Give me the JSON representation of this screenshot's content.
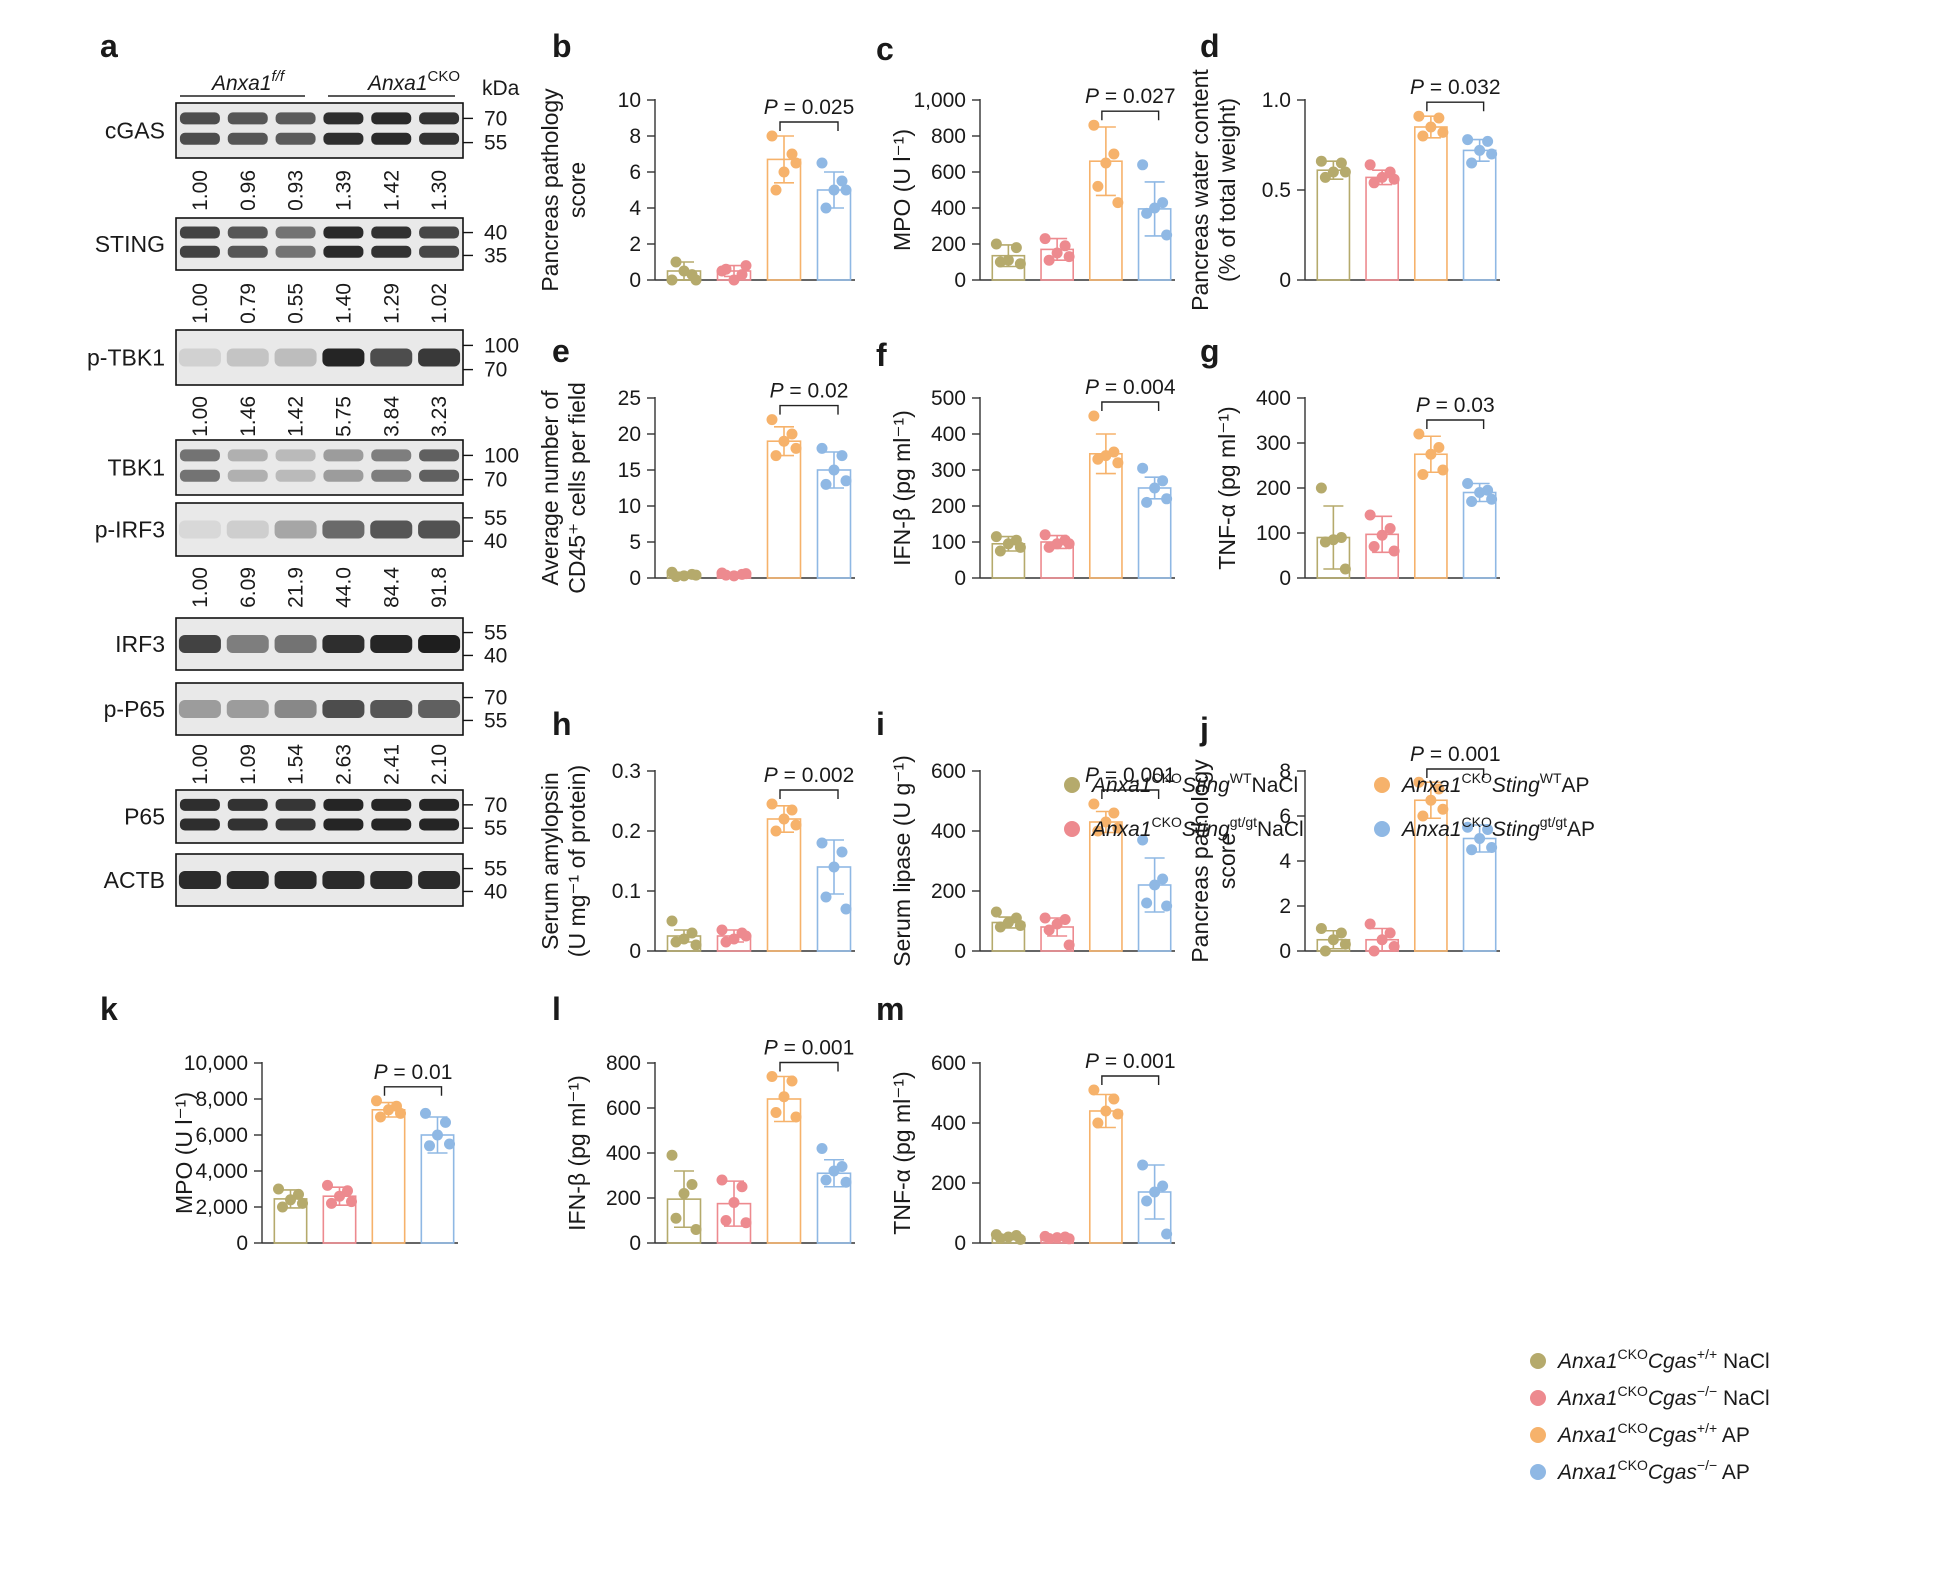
{
  "colors": {
    "wt_nacl": "#b5aa6c",
    "gt_nacl": "#ed8a8f",
    "wt_ap": "#f6b26b",
    "gt_ap": "#8fb8e4"
  },
  "blot": {
    "panel_label": "a",
    "genotype_ff": "Anxa1",
    "genotype_ff_sup": "f/f",
    "genotype_cko": "Anxa1",
    "genotype_cko_sup": "CKO",
    "kda_label": "kDa",
    "bands": [
      {
        "name": "cGAS",
        "markers": [
          "70",
          "55"
        ],
        "quant": [
          "1.00",
          "0.96",
          "0.93",
          "1.39",
          "1.42",
          "1.30"
        ],
        "intensity": [
          0.75,
          0.7,
          0.68,
          0.9,
          0.92,
          0.88
        ],
        "rows": 2
      },
      {
        "name": "STING",
        "markers": [
          "40",
          "35"
        ],
        "quant": [
          "1.00",
          "0.79",
          "0.55",
          "1.40",
          "1.29",
          "1.02"
        ],
        "intensity": [
          0.8,
          0.7,
          0.55,
          0.92,
          0.88,
          0.78
        ],
        "rows": 2
      },
      {
        "name": "p-TBK1",
        "markers": [
          "100",
          "70"
        ],
        "quant": [
          "1.00",
          "1.46",
          "1.42",
          "5.75",
          "3.84",
          "3.23"
        ],
        "intensity": [
          0.08,
          0.15,
          0.18,
          0.95,
          0.75,
          0.85
        ],
        "rows": 1
      },
      {
        "name": "TBK1",
        "markers": [
          "100",
          "70"
        ],
        "quant": [],
        "intensity": [
          0.55,
          0.25,
          0.2,
          0.35,
          0.5,
          0.65
        ],
        "rows": 2
      },
      {
        "name": "p-IRF3",
        "markers": [
          "55",
          "40"
        ],
        "quant": [
          "1.00",
          "6.09",
          "21.9",
          "44.0",
          "84.4",
          "91.8"
        ],
        "intensity": [
          0.05,
          0.1,
          0.3,
          0.6,
          0.7,
          0.72
        ],
        "rows": 1
      },
      {
        "name": "IRF3",
        "markers": [
          "55",
          "40"
        ],
        "quant": [],
        "intensity": [
          0.8,
          0.5,
          0.55,
          0.9,
          0.95,
          0.98
        ],
        "rows": 1
      },
      {
        "name": "p-P65",
        "markers": [
          "70",
          "55"
        ],
        "quant": [
          "1.00",
          "1.09",
          "1.54",
          "2.63",
          "2.41",
          "2.10"
        ],
        "intensity": [
          0.35,
          0.35,
          0.45,
          0.75,
          0.7,
          0.65
        ],
        "rows": 1
      },
      {
        "name": "P65",
        "markers": [
          "70",
          "55"
        ],
        "quant": [],
        "intensity": [
          0.9,
          0.88,
          0.86,
          0.95,
          0.95,
          0.95
        ],
        "rows": 2
      },
      {
        "name": "ACTB",
        "markers": [
          "55",
          "40"
        ],
        "quant": [],
        "intensity": [
          0.92,
          0.92,
          0.92,
          0.92,
          0.92,
          0.92
        ],
        "rows": 1
      }
    ]
  },
  "legend_sting": {
    "items": [
      {
        "prefix": "Anxa1",
        "sup1": "CKO",
        "gene": "Sting",
        "sup2": "WT",
        "suffix": "NaCl",
        "color": "wt_nacl"
      },
      {
        "prefix": "Anxa1",
        "sup1": "CKO",
        "gene": "Sting",
        "sup2": "WT",
        "suffix": "AP",
        "color": "wt_ap"
      },
      {
        "prefix": "Anxa1",
        "sup1": "CKO",
        "gene": "Sting",
        "sup2": "gt/gt",
        "suffix": "NaCl",
        "color": "gt_nacl"
      },
      {
        "prefix": "Anxa1",
        "sup1": "CKO",
        "gene": "Sting",
        "sup2": "gt/gt",
        "suffix": "AP",
        "color": "gt_ap"
      }
    ]
  },
  "legend_cgas": {
    "items": [
      {
        "prefix": "Anxa1",
        "sup1": "CKO",
        "gene": "Cgas",
        "sup2": "+/+",
        "suffix": " NaCl",
        "color": "wt_nacl"
      },
      {
        "prefix": "Anxa1",
        "sup1": "CKO",
        "gene": "Cgas",
        "sup2": "−/−",
        "suffix": " NaCl",
        "color": "gt_nacl"
      },
      {
        "prefix": "Anxa1",
        "sup1": "CKO",
        "gene": "Cgas",
        "sup2": "+/+",
        "suffix": " AP",
        "color": "wt_ap"
      },
      {
        "prefix": "Anxa1",
        "sup1": "CKO",
        "gene": "Cgas",
        "sup2": "−/−",
        "suffix": " AP",
        "color": "gt_ap"
      }
    ]
  },
  "chart_data": [
    {
      "id": "b",
      "type": "bar",
      "ylabel": [
        "Pancreas pathology",
        "score"
      ],
      "ylim": [
        0,
        10
      ],
      "yticks": [
        "0",
        "2",
        "4",
        "6",
        "8",
        "10"
      ],
      "p_text": "P = 0.025",
      "series": [
        {
          "mean": 0.5,
          "sd": 0.5,
          "points": [
            0,
            0.3,
            0.5,
            1,
            0
          ]
        },
        {
          "mean": 0.5,
          "sd": 0.3,
          "points": [
            0.5,
            0.3,
            0,
            0.6,
            0.8
          ]
        },
        {
          "mean": 6.7,
          "sd": 1.3,
          "points": [
            8,
            7,
            6,
            5,
            6.5
          ]
        },
        {
          "mean": 5.0,
          "sd": 1.0,
          "points": [
            6.5,
            5.5,
            5,
            4,
            5
          ]
        }
      ]
    },
    {
      "id": "c",
      "type": "bar",
      "ylabel": [
        "MPO (U l⁻¹)"
      ],
      "ylim": [
        0,
        1000
      ],
      "yticks": [
        "0",
        "200",
        "400",
        "600",
        "800",
        "1,000"
      ],
      "p_text": "P = 0.027",
      "series": [
        {
          "mean": 135,
          "sd": 60,
          "points": [
            200,
            180,
            110,
            100,
            90
          ]
        },
        {
          "mean": 170,
          "sd": 60,
          "points": [
            230,
            190,
            150,
            110,
            130
          ]
        },
        {
          "mean": 660,
          "sd": 190,
          "points": [
            860,
            700,
            650,
            520,
            430
          ]
        },
        {
          "mean": 395,
          "sd": 150,
          "points": [
            640,
            430,
            400,
            370,
            250
          ]
        }
      ]
    },
    {
      "id": "d",
      "type": "bar",
      "ylabel": [
        "Pancreas water content",
        "(% of total weight)"
      ],
      "ylim": [
        0,
        1
      ],
      "yticks": [
        "0",
        "0.5",
        "1.0"
      ],
      "p_text": "P = 0.032",
      "series": [
        {
          "mean": 0.61,
          "sd": 0.05,
          "points": [
            0.66,
            0.65,
            0.6,
            0.57,
            0.6
          ]
        },
        {
          "mean": 0.57,
          "sd": 0.04,
          "points": [
            0.64,
            0.6,
            0.57,
            0.54,
            0.56
          ]
        },
        {
          "mean": 0.85,
          "sd": 0.06,
          "points": [
            0.91,
            0.9,
            0.85,
            0.8,
            0.82
          ]
        },
        {
          "mean": 0.72,
          "sd": 0.06,
          "points": [
            0.78,
            0.77,
            0.72,
            0.65,
            0.7
          ]
        }
      ]
    },
    {
      "id": "e",
      "type": "bar",
      "ylabel": [
        "Average number of",
        "CD45⁺ cells per field"
      ],
      "ylim": [
        0,
        25
      ],
      "yticks": [
        "0",
        "5",
        "10",
        "15",
        "20",
        "25"
      ],
      "p_text": "P = 0.02",
      "series": [
        {
          "mean": 0.5,
          "sd": 0.3,
          "points": [
            0.8,
            0.5,
            0.3,
            0.2,
            0.4
          ]
        },
        {
          "mean": 0.5,
          "sd": 0.3,
          "points": [
            0.7,
            0.5,
            0.3,
            0.4,
            0.6
          ]
        },
        {
          "mean": 19,
          "sd": 2,
          "points": [
            22,
            20,
            19,
            17,
            18
          ]
        },
        {
          "mean": 15,
          "sd": 2.5,
          "points": [
            18,
            17,
            15,
            13,
            13.5
          ]
        }
      ]
    },
    {
      "id": "f",
      "type": "bar",
      "ylabel": [
        "IFN-β (pg ml⁻¹)"
      ],
      "ylim": [
        0,
        500
      ],
      "yticks": [
        "0",
        "100",
        "200",
        "300",
        "400",
        "500"
      ],
      "p_text": "P = 0.004",
      "series": [
        {
          "mean": 95,
          "sd": 20,
          "points": [
            115,
            105,
            95,
            75,
            85
          ]
        },
        {
          "mean": 100,
          "sd": 18,
          "points": [
            120,
            105,
            95,
            85,
            95
          ]
        },
        {
          "mean": 345,
          "sd": 55,
          "points": [
            450,
            350,
            340,
            330,
            320
          ]
        },
        {
          "mean": 250,
          "sd": 30,
          "points": [
            305,
            270,
            250,
            210,
            220
          ]
        }
      ]
    },
    {
      "id": "g",
      "type": "bar",
      "ylabel": [
        "TNF-α (pg ml⁻¹)"
      ],
      "ylim": [
        0,
        400
      ],
      "yticks": [
        "0",
        "100",
        "200",
        "300",
        "400"
      ],
      "p_text": "P = 0.03",
      "series": [
        {
          "mean": 90,
          "sd": 70,
          "points": [
            200,
            90,
            85,
            80,
            20
          ]
        },
        {
          "mean": 97,
          "sd": 40,
          "points": [
            140,
            110,
            95,
            70,
            60
          ]
        },
        {
          "mean": 275,
          "sd": 40,
          "points": [
            320,
            290,
            275,
            230,
            240
          ]
        },
        {
          "mean": 190,
          "sd": 20,
          "points": [
            210,
            195,
            190,
            170,
            175
          ]
        }
      ]
    },
    {
      "id": "h",
      "type": "bar",
      "ylabel": [
        "Serum amylopsin",
        "(U mg⁻¹ of protein)"
      ],
      "ylim": [
        0,
        0.3
      ],
      "yticks": [
        "0",
        "0.1",
        "0.2",
        "0.3"
      ],
      "p_text": "P = 0.002",
      "series": [
        {
          "mean": 0.025,
          "sd": 0.01,
          "points": [
            0.05,
            0.03,
            0.02,
            0.015,
            0.01
          ]
        },
        {
          "mean": 0.025,
          "sd": 0.01,
          "points": [
            0.035,
            0.03,
            0.02,
            0.015,
            0.025
          ]
        },
        {
          "mean": 0.22,
          "sd": 0.022,
          "points": [
            0.245,
            0.235,
            0.22,
            0.2,
            0.21
          ]
        },
        {
          "mean": 0.14,
          "sd": 0.045,
          "points": [
            0.18,
            0.165,
            0.14,
            0.09,
            0.07
          ]
        }
      ]
    },
    {
      "id": "i",
      "type": "bar",
      "ylabel": [
        "Serum lipase (U g⁻¹)"
      ],
      "ylim": [
        0,
        600
      ],
      "yticks": [
        "0",
        "200",
        "400",
        "600"
      ],
      "p_text": "P = 0.001",
      "series": [
        {
          "mean": 95,
          "sd": 18,
          "points": [
            130,
            110,
            95,
            80,
            85
          ]
        },
        {
          "mean": 80,
          "sd": 30,
          "points": [
            110,
            105,
            90,
            70,
            20
          ]
        },
        {
          "mean": 430,
          "sd": 35,
          "points": [
            490,
            460,
            430,
            400,
            410
          ]
        },
        {
          "mean": 220,
          "sd": 90,
          "points": [
            370,
            240,
            220,
            160,
            150
          ]
        }
      ]
    },
    {
      "id": "j",
      "type": "bar",
      "ylabel": [
        "Pancreas pathology",
        "score"
      ],
      "ylim": [
        0,
        8
      ],
      "yticks": [
        "0",
        "2",
        "4",
        "6",
        "8"
      ],
      "p_text": "P = 0.001",
      "series": [
        {
          "mean": 0.5,
          "sd": 0.4,
          "points": [
            1,
            0.8,
            0.5,
            0,
            0.3
          ]
        },
        {
          "mean": 0.5,
          "sd": 0.5,
          "points": [
            1.2,
            0.8,
            0.5,
            0,
            0.2
          ]
        },
        {
          "mean": 6.7,
          "sd": 0.8,
          "points": [
            7.5,
            7.2,
            6.7,
            6,
            6.3
          ]
        },
        {
          "mean": 5,
          "sd": 0.6,
          "points": [
            5.5,
            5.4,
            5,
            4.5,
            4.6
          ]
        }
      ]
    },
    {
      "id": "k",
      "type": "bar",
      "ylabel": [
        "MPO (U l⁻¹)"
      ],
      "ylim": [
        0,
        10000
      ],
      "yticks": [
        "0",
        "2,000",
        "4,000",
        "6,000",
        "8,000",
        "10,000"
      ],
      "p_text": "P = 0.01",
      "series": [
        {
          "mean": 2450,
          "sd": 500,
          "points": [
            3000,
            2700,
            2400,
            2000,
            2200
          ]
        },
        {
          "mean": 2600,
          "sd": 500,
          "points": [
            3200,
            2900,
            2600,
            2200,
            2300
          ]
        },
        {
          "mean": 7400,
          "sd": 400,
          "points": [
            7900,
            7600,
            7400,
            7000,
            7200
          ]
        },
        {
          "mean": 6000,
          "sd": 1000,
          "points": [
            7200,
            6700,
            6000,
            5400,
            5500
          ]
        }
      ]
    },
    {
      "id": "l",
      "type": "bar",
      "ylabel": [
        "IFN-β (pg ml⁻¹)"
      ],
      "ylim": [
        0,
        800
      ],
      "yticks": [
        "0",
        "200",
        "400",
        "600",
        "800"
      ],
      "p_text": "P = 0.001",
      "series": [
        {
          "mean": 195,
          "sd": 125,
          "points": [
            390,
            260,
            220,
            110,
            60
          ]
        },
        {
          "mean": 175,
          "sd": 100,
          "points": [
            280,
            250,
            180,
            100,
            90
          ]
        },
        {
          "mean": 640,
          "sd": 100,
          "points": [
            740,
            720,
            650,
            580,
            560
          ]
        },
        {
          "mean": 310,
          "sd": 60,
          "points": [
            420,
            340,
            320,
            280,
            270
          ]
        }
      ]
    },
    {
      "id": "m",
      "type": "bar",
      "ylabel": [
        "TNF-α (pg ml⁻¹)"
      ],
      "ylim": [
        0,
        600
      ],
      "yticks": [
        "0",
        "200",
        "400",
        "600"
      ],
      "p_text": "P = 0.001",
      "series": [
        {
          "mean": 20,
          "sd": 8,
          "points": [
            28,
            25,
            20,
            15,
            12
          ]
        },
        {
          "mean": 18,
          "sd": 5,
          "points": [
            22,
            20,
            18,
            15,
            14
          ]
        },
        {
          "mean": 440,
          "sd": 55,
          "points": [
            510,
            480,
            440,
            400,
            430
          ]
        },
        {
          "mean": 170,
          "sd": 90,
          "points": [
            260,
            190,
            170,
            140,
            30
          ]
        }
      ]
    }
  ]
}
